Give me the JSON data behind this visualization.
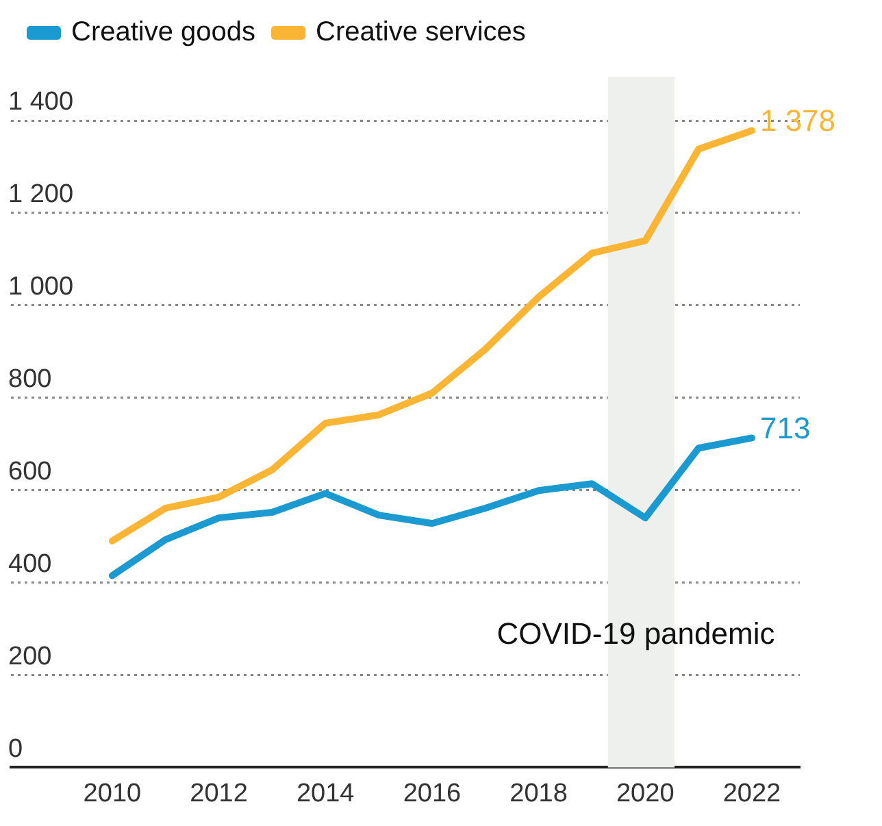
{
  "chart_data": {
    "type": "line",
    "x": [
      2010,
      2011,
      2012,
      2013,
      2014,
      2015,
      2016,
      2017,
      2018,
      2019,
      2020,
      2021,
      2022
    ],
    "series": [
      {
        "name": "Creative goods",
        "color": "#1a9ad0",
        "values": [
          415,
          493,
          540,
          552,
          593,
          546,
          528,
          561,
          599,
          614,
          540,
          691,
          713
        ],
        "value_labels": [
          null,
          null,
          null,
          null,
          null,
          null,
          null,
          null,
          null,
          null,
          null,
          null,
          "713"
        ]
      },
      {
        "name": "Creative services",
        "color": "#fbb535",
        "values": [
          490,
          561,
          585,
          644,
          745,
          763,
          810,
          905,
          1018,
          1113,
          1140,
          1338,
          1378
        ],
        "value_labels": [
          null,
          null,
          null,
          null,
          null,
          null,
          null,
          null,
          null,
          null,
          null,
          null,
          "1 378"
        ]
      }
    ],
    "xlim": [
      2008.1,
      2022.9
    ],
    "xticks": [
      2010,
      2012,
      2014,
      2016,
      2018,
      2020,
      2022
    ],
    "ylim": [
      0,
      1400
    ],
    "yticks": [
      {
        "value": 0,
        "label": "0"
      },
      {
        "value": 200,
        "label": "200"
      },
      {
        "value": 400,
        "label": "400"
      },
      {
        "value": 600,
        "label": "600"
      },
      {
        "value": 800,
        "label": "800"
      },
      {
        "value": 1000,
        "label": "1 000"
      },
      {
        "value": 1200,
        "label": "1 200"
      },
      {
        "value": 1400,
        "label": "1 400"
      }
    ],
    "bands": [
      {
        "axis": "x",
        "from": 2019.3,
        "to": 2020.55,
        "label": "COVID-19 pandemic",
        "color": "#eef0ee"
      }
    ],
    "grid": "y",
    "legend": "top left",
    "marker": "none",
    "line_style": "solid"
  }
}
